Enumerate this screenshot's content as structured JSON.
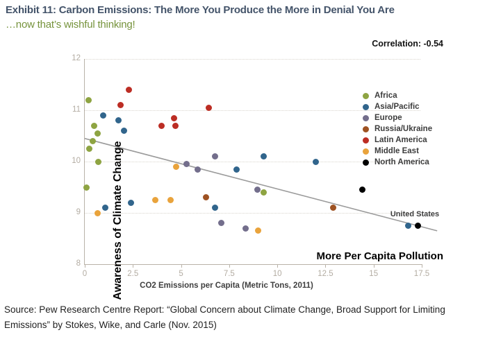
{
  "header": {
    "title": "Exhibit 11: Carbon Emissions: The More You Produce the More in Denial You Are",
    "subtitle": "…now that’s wishful thinking!"
  },
  "annotations": {
    "correlation_label": "Correlation: -0.54",
    "axis_note": "More Per Capita Pollution",
    "point_label": "United States"
  },
  "source": {
    "line1": "Source:  Pew Research Centre Report: “Global Concern about Climate Change, Broad Support for Limiting",
    "line2": "Emissions” by Stokes, Wike, and Carle (Nov. 2015)"
  },
  "colors": {
    "title": "#44546A",
    "subtitle": "#76933C",
    "tick_labels": "#B3ACA2",
    "gridline": "#D8D4CC",
    "trendline": "#9B9B9B"
  },
  "chart_data": {
    "type": "scatter",
    "title": "",
    "xlabel": "CO2 Emissions per Capita (Metric Tons, 2011)",
    "ylabel": "Awareness of Climate Change",
    "xlim": [
      0,
      17.5
    ],
    "ylim": [
      8,
      12
    ],
    "xticks": {
      "values": [
        0,
        2.5,
        5,
        7.5,
        10,
        12.5,
        15,
        17.5
      ],
      "labels": [
        "0",
        "2.5",
        "5",
        "7.5",
        "10",
        "12.5",
        "15",
        "17.5"
      ]
    },
    "yticks": {
      "values": [
        12,
        11,
        10,
        9,
        8
      ],
      "labels": [
        "12",
        "11",
        "10",
        "9",
        "8"
      ],
      "gridlines": [
        12,
        11,
        10,
        9
      ]
    },
    "grid": "horizontal-dotted",
    "legend_position": "right-inside",
    "correlation": -0.54,
    "trendline": {
      "x1": 0,
      "y1": 10.45,
      "x2": 18.3,
      "y2": 8.65
    },
    "labeled_point": {
      "series": "North America",
      "x": 17.3,
      "y": 8.75,
      "label": "United States"
    },
    "series": [
      {
        "name": "Africa",
        "color": "#8EA442",
        "points": [
          [
            0.2,
            11.2
          ],
          [
            0.5,
            10.7
          ],
          [
            0.65,
            10.55
          ],
          [
            0.4,
            10.4
          ],
          [
            0.25,
            10.25
          ],
          [
            0.7,
            10.0
          ],
          [
            0.1,
            9.5
          ],
          [
            9.3,
            9.4
          ]
        ]
      },
      {
        "name": "Asia/Pacific",
        "color": "#31658C",
        "points": [
          [
            0.95,
            10.9
          ],
          [
            1.75,
            10.8
          ],
          [
            2.05,
            10.6
          ],
          [
            9.3,
            10.1
          ],
          [
            12.0,
            10.0
          ],
          [
            7.9,
            9.85
          ],
          [
            2.4,
            9.2
          ],
          [
            1.05,
            9.1
          ],
          [
            6.75,
            9.1
          ],
          [
            16.8,
            8.75
          ]
        ]
      },
      {
        "name": "Europe",
        "color": "#736E8C",
        "points": [
          [
            6.75,
            10.1
          ],
          [
            5.3,
            9.95
          ],
          [
            5.85,
            9.85
          ],
          [
            8.95,
            9.45
          ],
          [
            7.1,
            8.8
          ],
          [
            8.35,
            8.7
          ]
        ]
      },
      {
        "name": "Russia/Ukraine",
        "color": "#9E5222",
        "points": [
          [
            6.3,
            9.3
          ],
          [
            12.9,
            9.1
          ]
        ]
      },
      {
        "name": "Latin America",
        "color": "#BC2D24",
        "points": [
          [
            2.3,
            11.4
          ],
          [
            1.85,
            11.1
          ],
          [
            6.45,
            11.05
          ],
          [
            4.65,
            10.85
          ],
          [
            4.0,
            10.7
          ],
          [
            4.7,
            10.7
          ]
        ]
      },
      {
        "name": "Middle East",
        "color": "#E9A33C",
        "points": [
          [
            4.75,
            9.9
          ],
          [
            3.65,
            9.25
          ],
          [
            4.45,
            9.25
          ],
          [
            0.65,
            9.0
          ],
          [
            9.0,
            8.65
          ]
        ]
      },
      {
        "name": "North America",
        "color": "#000000",
        "points": [
          [
            14.4,
            9.45
          ],
          [
            17.3,
            8.75
          ]
        ]
      }
    ]
  }
}
